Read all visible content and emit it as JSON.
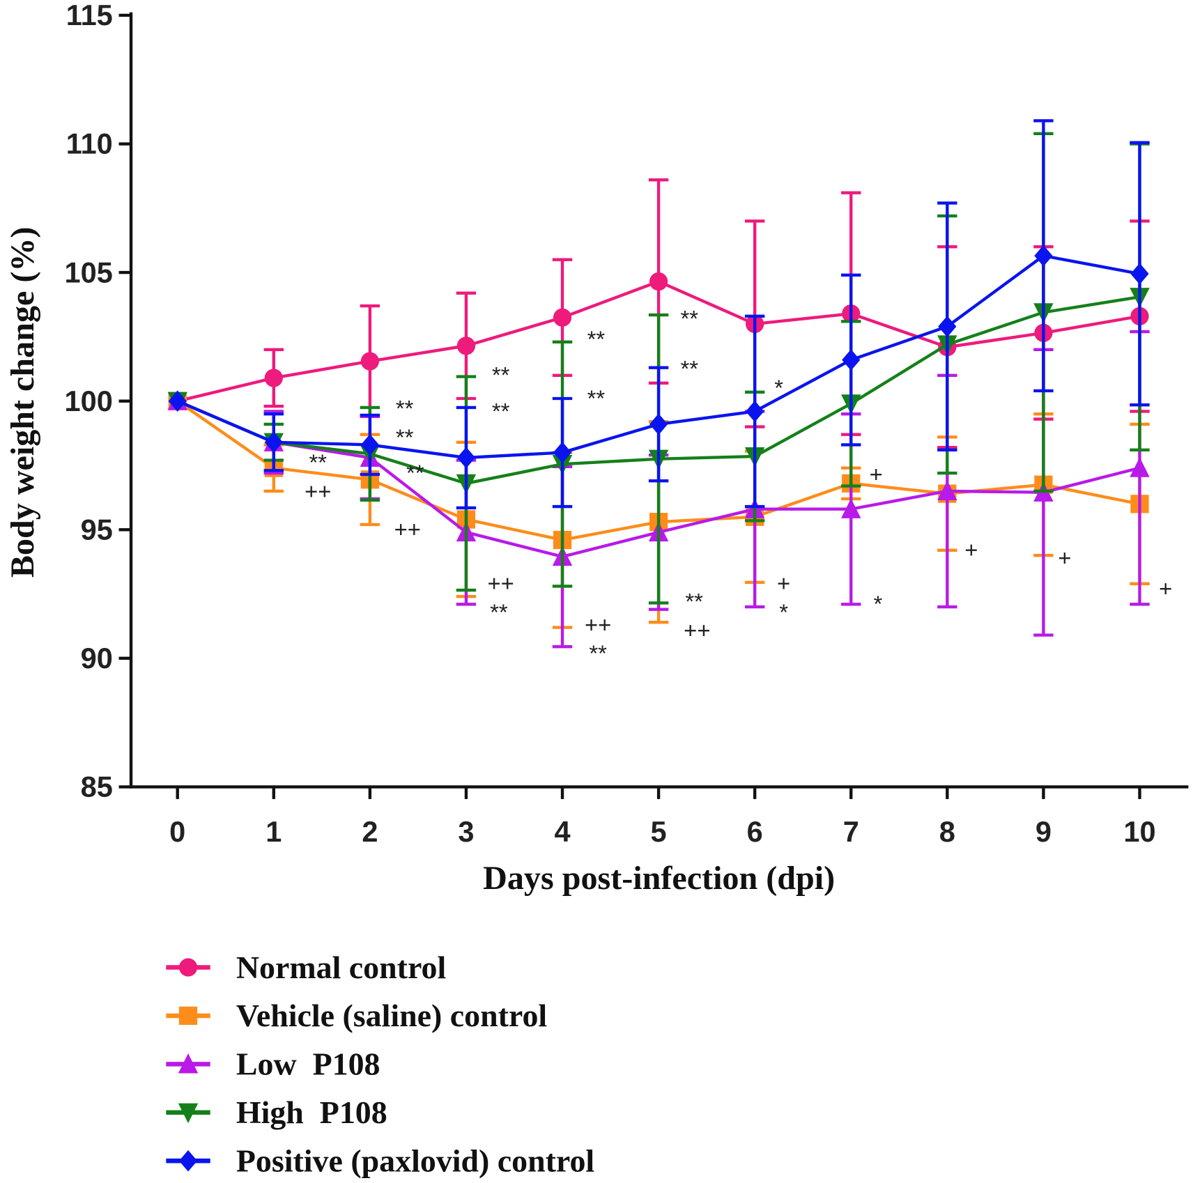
{
  "chart_data": {
    "type": "line",
    "title": "",
    "xlabel": "Days post-infection (dpi)",
    "ylabel": "Body weight change (%)",
    "xlim": [
      0,
      10
    ],
    "ylim": [
      85,
      115
    ],
    "x": [
      0,
      1,
      2,
      3,
      4,
      5,
      6,
      7,
      8,
      9,
      10
    ],
    "x_ticks": [
      "0",
      "1",
      "2",
      "3",
      "4",
      "5",
      "6",
      "7",
      "8",
      "9",
      "10"
    ],
    "y_ticks": [
      "85",
      "90",
      "95",
      "100",
      "105",
      "110",
      "115"
    ],
    "grid": false,
    "legend_position": "bottom-left",
    "series": [
      {
        "name": "Normal control",
        "color": "#ee1a7c",
        "marker": "circle",
        "values": [
          100,
          100.9,
          101.55,
          102.15,
          103.25,
          104.65,
          103.0,
          103.4,
          102.1,
          102.65,
          103.3
        ],
        "error": [
          0,
          1.1,
          2.15,
          2.05,
          2.25,
          3.95,
          4.0,
          4.7,
          3.9,
          3.35,
          3.7
        ]
      },
      {
        "name": "Vehicle (saline) control",
        "color": "#ff8c1a",
        "marker": "square",
        "values": [
          100,
          97.4,
          96.95,
          95.4,
          94.6,
          95.3,
          95.5,
          96.8,
          96.4,
          96.75,
          96.0
        ],
        "error": [
          0,
          0.9,
          1.75,
          3.0,
          3.4,
          3.9,
          2.55,
          0.6,
          2.2,
          2.75,
          3.1
        ]
      },
      {
        "name": "Low  P108",
        "color": "#b81ae8",
        "marker": "triangle-up",
        "values": [
          100,
          98.4,
          97.8,
          94.9,
          93.95,
          94.9,
          95.8,
          95.8,
          96.5,
          96.45,
          97.4
        ],
        "error": [
          0,
          1.2,
          1.6,
          2.8,
          3.5,
          3.0,
          3.8,
          3.7,
          4.5,
          5.55,
          5.3
        ]
      },
      {
        "name": "High  P108",
        "color": "#14801a",
        "marker": "triangle-down",
        "values": [
          100,
          98.4,
          97.95,
          96.8,
          97.55,
          97.75,
          97.85,
          99.9,
          102.2,
          103.45,
          104.05
        ],
        "error": [
          0,
          0.7,
          1.8,
          4.15,
          4.75,
          5.6,
          2.5,
          3.2,
          5.0,
          6.95,
          5.95
        ]
      },
      {
        "name": "Positive (paxlovid) control",
        "color": "#0a14ee",
        "marker": "diamond",
        "values": [
          100,
          98.4,
          98.3,
          97.8,
          98.0,
          99.1,
          99.6,
          101.6,
          102.9,
          105.65,
          104.95
        ],
        "error": [
          0,
          1.1,
          1.15,
          1.95,
          2.1,
          2.2,
          3.7,
          3.3,
          4.8,
          5.25,
          5.1
        ]
      }
    ],
    "annotations": [
      {
        "text": "**",
        "day": 1.46,
        "value": 97.6
      },
      {
        "text": "++",
        "day": 1.46,
        "value": 96.5
      },
      {
        "text": "**",
        "day": 2.36,
        "value": 99.7
      },
      {
        "text": "**",
        "day": 2.36,
        "value": 99.05
      },
      {
        "text": "**",
        "day": 2.47,
        "value": 97.2
      },
      {
        "text": "++",
        "day": 2.39,
        "value": 95.0
      },
      {
        "text": "**",
        "day": 3.36,
        "value": 101.0
      },
      {
        "text": "**",
        "day": 3.36,
        "value": 99.6
      },
      {
        "text": "++",
        "day": 3.36,
        "value": 92.9
      },
      {
        "text": "**",
        "day": 3.34,
        "value": 92.1
      },
      {
        "text": "**",
        "day": 4.35,
        "value": 102.4
      },
      {
        "text": "**",
        "day": 4.35,
        "value": 100.1
      },
      {
        "text": "++",
        "day": 4.37,
        "value": 91.3
      },
      {
        "text": "**",
        "day": 4.37,
        "value": 90.6
      },
      {
        "text": "**",
        "day": 5.32,
        "value": 103.2
      },
      {
        "text": "**",
        "day": 5.32,
        "value": 101.25
      },
      {
        "text": "**",
        "day": 5.37,
        "value": 92.2
      },
      {
        "text": "++",
        "day": 5.4,
        "value": 91.45
      },
      {
        "text": "*",
        "day": 6.25,
        "value": 100.5
      },
      {
        "text": "+",
        "day": 6.3,
        "value": 92.9
      },
      {
        "text": "*",
        "day": 6.3,
        "value": 91.9
      },
      {
        "text": "+",
        "day": 7.26,
        "value": 97.15
      },
      {
        "text": "*",
        "day": 7.28,
        "value": 92.1
      },
      {
        "text": "+",
        "day": 8.25,
        "value": 94.2
      },
      {
        "text": "+",
        "day": 9.22,
        "value": 93.9
      },
      {
        "text": "+",
        "day": 10.27,
        "value": 92.7
      }
    ]
  }
}
